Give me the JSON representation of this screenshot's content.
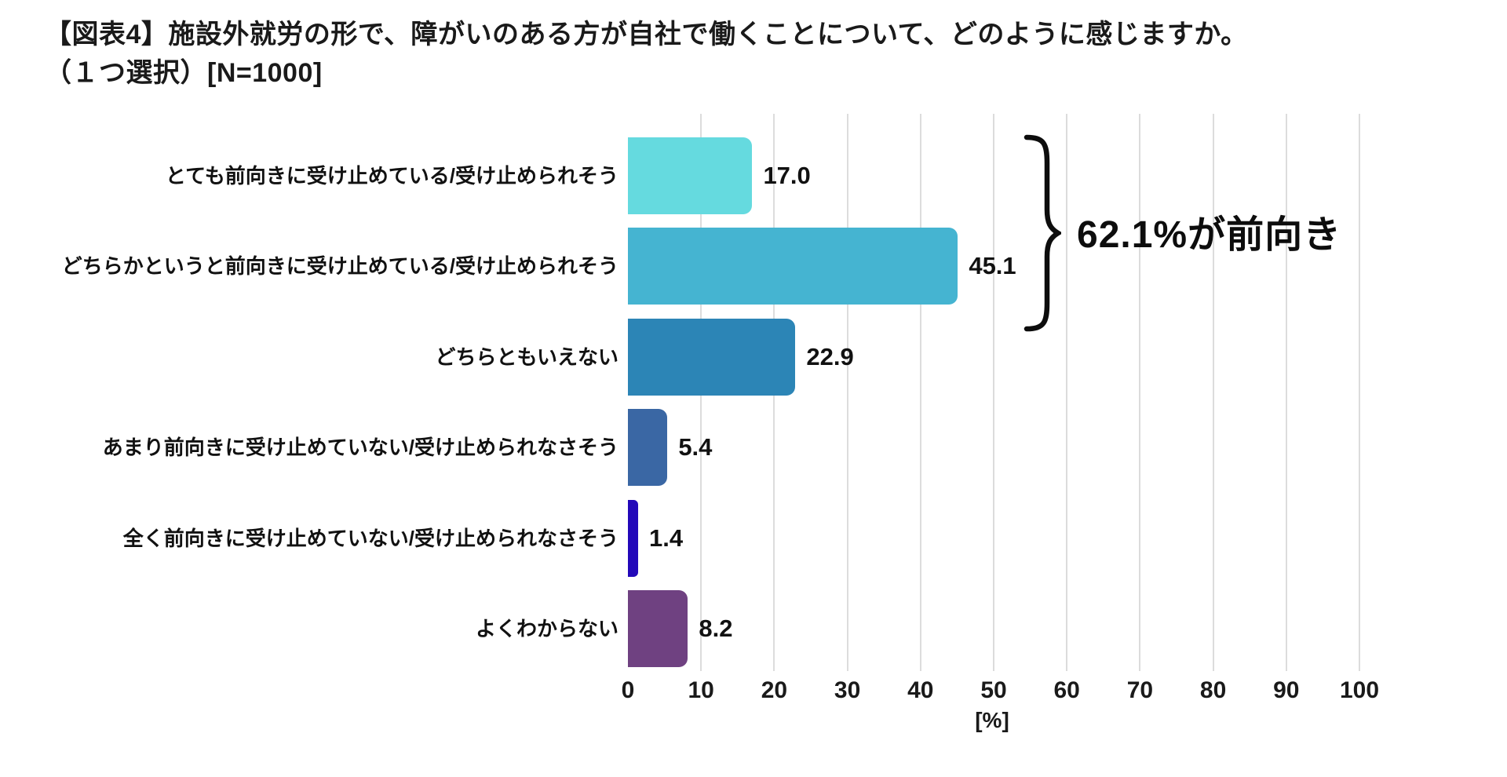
{
  "title": {
    "line1": "【図表4】施設外就労の形で、障がいのある方が自社で働くことについて、どのように感じますか。",
    "line2": "（１つ選択）[N=1000]"
  },
  "chart_data": {
    "type": "bar",
    "orientation": "horizontal",
    "categories": [
      "とても前向きに受け止めている/受け止められそう",
      "どちらかというと前向きに受け止めている/受け止められそう",
      "どちらともいえない",
      "あまり前向きに受け止めていない/受け止められなさそう",
      "全く前向きに受け止めていない/受け止められなさそう",
      "よくわからない"
    ],
    "values": [
      17.0,
      45.1,
      22.9,
      5.4,
      1.4,
      8.2
    ],
    "value_labels": [
      "17.0",
      "45.1",
      "22.9",
      "5.4",
      "1.4",
      "8.2"
    ],
    "bar_colors": [
      "#65DADF",
      "#45B4D1",
      "#2C85B6",
      "#3A67A4",
      "#2309B9",
      "#6F4181"
    ],
    "xlabel": "[%]",
    "xlim": [
      0,
      100
    ],
    "x_ticks": [
      0,
      10,
      20,
      30,
      40,
      50,
      60,
      70,
      80,
      90,
      100
    ],
    "grid": true,
    "gridline_color": "#dcdcdc",
    "annotation": {
      "text": "62.1%が前向き",
      "applies_to_categories": [
        0,
        1
      ],
      "combined_value": 62.1
    }
  }
}
